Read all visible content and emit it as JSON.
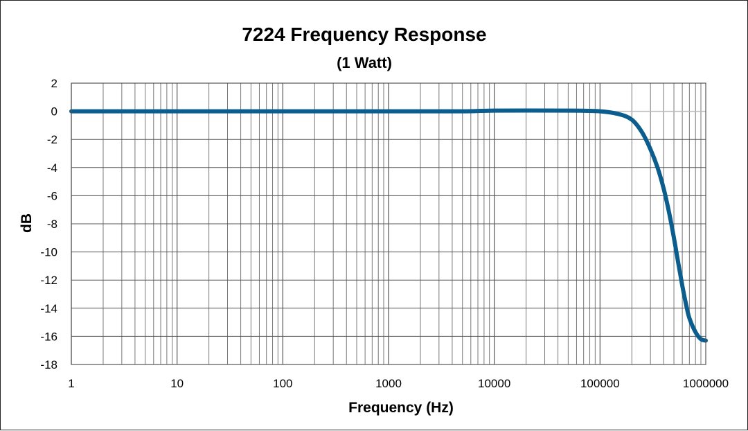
{
  "chart_data": {
    "type": "line",
    "title": "7224 Frequency Response",
    "subtitle": "(1 Watt)",
    "xlabel": "Frequency (Hz)",
    "ylabel": "dB",
    "xscale": "log",
    "xlim": [
      1,
      1000000
    ],
    "ylim": [
      -18,
      2
    ],
    "x_ticks": [
      "1",
      "10",
      "100",
      "1000",
      "10000",
      "100000",
      "1000000"
    ],
    "y_ticks": [
      "2",
      "0",
      "-2",
      "-4",
      "-6",
      "-8",
      "-10",
      "-12",
      "-14",
      "-16",
      "-18"
    ],
    "grid": true,
    "series": [
      {
        "color": "#0b5d8e",
        "x": [
          1,
          10,
          100,
          1000,
          5000,
          10000,
          50000,
          100000,
          150000,
          200000,
          250000,
          300000,
          350000,
          400000,
          450000,
          500000,
          550000,
          600000,
          650000,
          700000,
          800000,
          900000,
          1000000
        ],
        "y": [
          0,
          0,
          0,
          0,
          0,
          0.05,
          0.05,
          0,
          -0.2,
          -0.6,
          -1.5,
          -2.7,
          -4.0,
          -5.5,
          -7.2,
          -9.0,
          -10.8,
          -12.4,
          -13.7,
          -14.7,
          -15.7,
          -16.2,
          -16.3
        ]
      }
    ]
  }
}
